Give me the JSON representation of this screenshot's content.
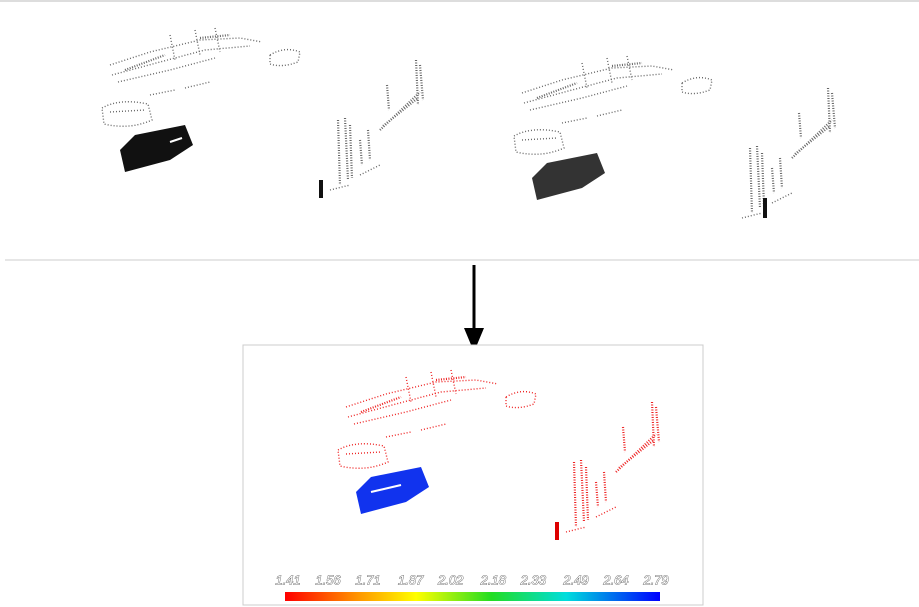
{
  "colorbar": {
    "ticks": [
      1.41,
      1.56,
      1.71,
      1.87,
      2.02,
      2.18,
      2.33,
      2.49,
      2.64,
      2.79
    ]
  }
}
